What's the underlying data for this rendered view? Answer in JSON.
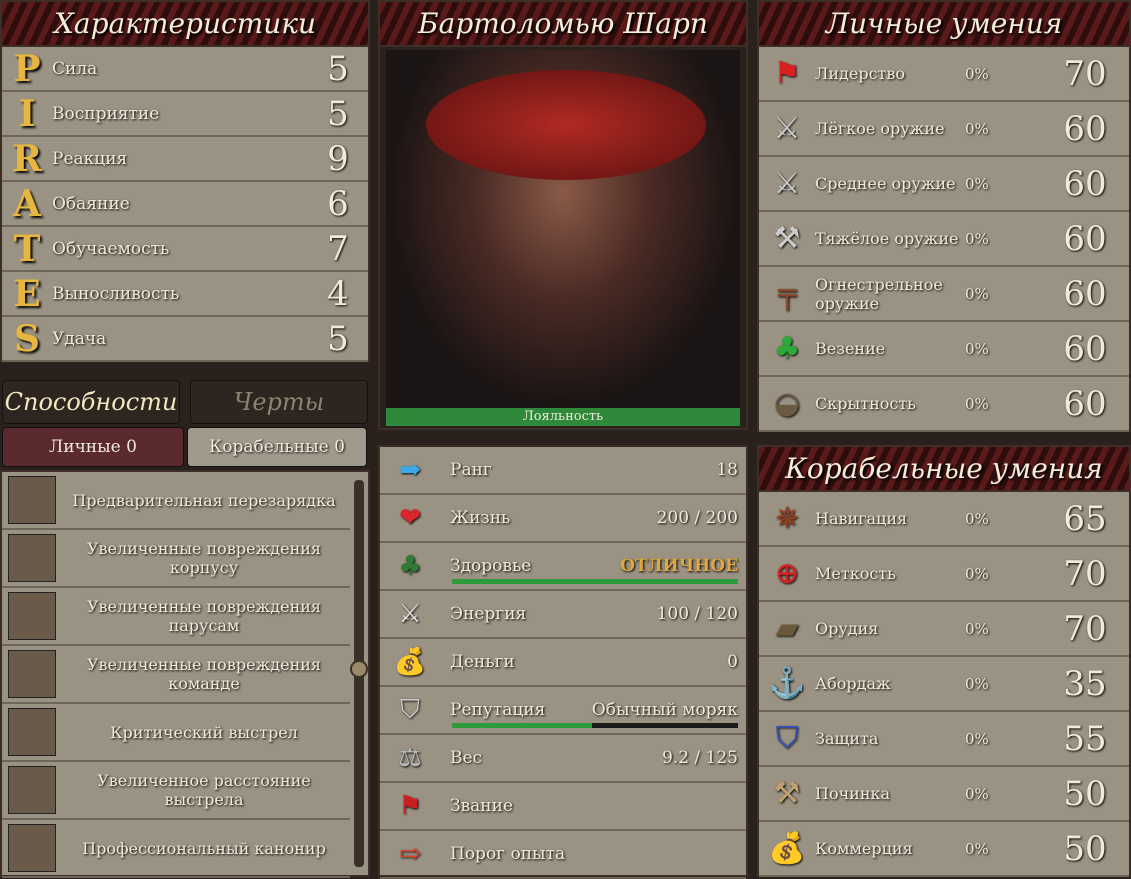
{
  "characteristics": {
    "title": "Характеристики",
    "items": [
      {
        "letter": "P",
        "label": "Сила",
        "value": "5"
      },
      {
        "letter": "I",
        "label": "Восприятие",
        "value": "5"
      },
      {
        "letter": "R",
        "label": "Реакция",
        "value": "9"
      },
      {
        "letter": "A",
        "label": "Обаяние",
        "value": "6"
      },
      {
        "letter": "T",
        "label": "Обучаемость",
        "value": "7"
      },
      {
        "letter": "E",
        "label": "Выносливость",
        "value": "4"
      },
      {
        "letter": "S",
        "label": "Удача",
        "value": "5"
      }
    ]
  },
  "tabs": {
    "abilities": "Способности",
    "traits": "Черты",
    "personal": "Личные 0",
    "ship": "Корабельные 0"
  },
  "abilities": [
    {
      "icon": "reload-icon",
      "label": "Предварительная перезарядка"
    },
    {
      "icon": "hull-damage-icon",
      "label": "Увеличенные повреждения корпусу"
    },
    {
      "icon": "sail-damage-icon",
      "label": "Увеличенные повреждения парусам"
    },
    {
      "icon": "skull-icon",
      "label": "Увеличенные повреждения команде"
    },
    {
      "icon": "crosshair-icon",
      "label": "Критический выстрел"
    },
    {
      "icon": "cannon-range-icon",
      "label": "Увеличенное расстояние выстрела"
    },
    {
      "icon": "gunner-icon",
      "label": "Профессиональный канонир"
    }
  ],
  "character": {
    "name": "Бартоломью Шарп",
    "loyalty_label": "Лояльность",
    "loyalty": 1.0
  },
  "stats": [
    {
      "icon": "rank-arrow-icon",
      "glyph": "➡",
      "color": "#3aa8e8",
      "label": "Ранг",
      "value": "18"
    },
    {
      "icon": "heart-icon",
      "glyph": "❤",
      "color": "#d8262a",
      "label": "Жизнь",
      "value": "200 / 200"
    },
    {
      "icon": "clover-icon",
      "glyph": "♣",
      "color": "#2f7a34",
      "label": "Здоровье",
      "value": "ОТЛИЧНОЕ",
      "value_color": "#e0a840",
      "bar": 1.0
    },
    {
      "icon": "crossed-swords-icon",
      "glyph": "⚔",
      "color": "#ddd",
      "label": "Энергия",
      "value": "100 / 120"
    },
    {
      "icon": "money-bag-icon",
      "glyph": "💰",
      "color": "#a0702a",
      "label": "Деньги",
      "value": "0"
    },
    {
      "icon": "shield-icon",
      "glyph": "⛉",
      "color": "#ccc",
      "label": "Репутация",
      "value": "Обычный моряк",
      "bar": 0.49
    },
    {
      "icon": "weight-icon",
      "glyph": "⚖",
      "color": "#bbb",
      "label": "Вес",
      "value": "9.2 / 125"
    },
    {
      "icon": "flag-icon",
      "glyph": "⚑",
      "color": "#c82020",
      "label": "Звание",
      "value": ""
    },
    {
      "icon": "experience-arrow-icon",
      "glyph": "⇨",
      "color": "#e04020",
      "label": "Порог опыта",
      "value": ""
    }
  ],
  "personal_skills": {
    "title": "Личные умения",
    "items": [
      {
        "icon": "flag-icon",
        "glyph": "⚑",
        "color": "#d82020",
        "label": "Лидерство",
        "pct": "0%",
        "value": "70"
      },
      {
        "icon": "light-weapon-icon",
        "glyph": "⚔",
        "color": "#ccc",
        "label": "Лёгкое оружие",
        "pct": "0%",
        "value": "60"
      },
      {
        "icon": "medium-weapon-icon",
        "glyph": "⚔",
        "color": "#ccc",
        "label": "Среднее оружие",
        "pct": "0%",
        "value": "60"
      },
      {
        "icon": "heavy-weapon-icon",
        "glyph": "⚒",
        "color": "#ccc",
        "label": "Тяжёлое оружие",
        "pct": "0%",
        "value": "60"
      },
      {
        "icon": "pistol-icon",
        "glyph": "╤",
        "color": "#8a4a2a",
        "label": "Огнестрельное оружие",
        "pct": "0%",
        "value": "60"
      },
      {
        "icon": "clover-icon",
        "glyph": "♣",
        "color": "#2ea83a",
        "label": "Везение",
        "pct": "0%",
        "value": "60"
      },
      {
        "icon": "mask-icon",
        "glyph": "◒",
        "color": "#6a5a40",
        "label": "Скрытность",
        "pct": "0%",
        "value": "60"
      }
    ]
  },
  "ship_skills": {
    "title": "Корабельные умения",
    "items": [
      {
        "icon": "compass-icon",
        "glyph": "✵",
        "color": "#a04020",
        "label": "Навигация",
        "pct": "0%",
        "value": "65"
      },
      {
        "icon": "target-icon",
        "glyph": "⊕",
        "color": "#d82020",
        "label": "Меткость",
        "pct": "0%",
        "value": "70"
      },
      {
        "icon": "cannon-icon",
        "glyph": "▰",
        "color": "#6a5a3a",
        "label": "Орудия",
        "pct": "0%",
        "value": "70"
      },
      {
        "icon": "grappling-hook-icon",
        "glyph": "⚓",
        "color": "#ccc",
        "label": "Абордаж",
        "pct": "0%",
        "value": "35"
      },
      {
        "icon": "defense-shield-icon",
        "glyph": "⛉",
        "color": "#3050d0",
        "label": "Защита",
        "pct": "0%",
        "value": "55"
      },
      {
        "icon": "hammer-icon",
        "glyph": "⚒",
        "color": "#c0a070",
        "label": "Починка",
        "pct": "0%",
        "value": "50"
      },
      {
        "icon": "money-bag-icon",
        "glyph": "💰",
        "color": "#a0702a",
        "label": "Коммерция",
        "pct": "0%",
        "value": "50"
      }
    ]
  }
}
